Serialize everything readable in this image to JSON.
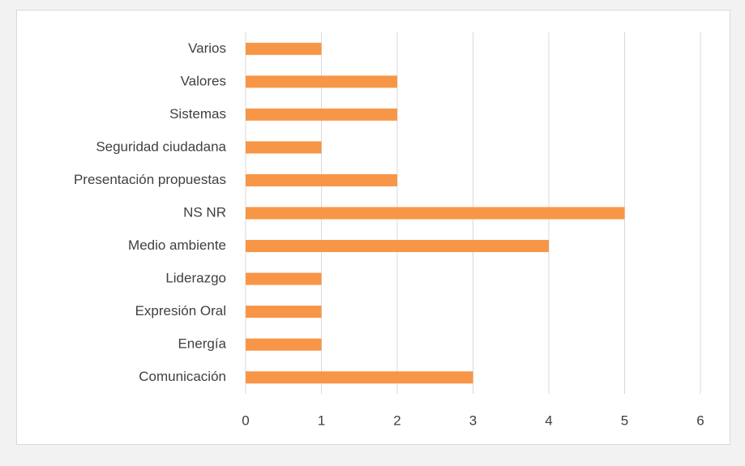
{
  "chart_data": {
    "type": "bar",
    "orientation": "horizontal",
    "categories": [
      "Varios",
      "Valores",
      "Sistemas",
      "Seguridad ciudadana",
      "Presentación propuestas",
      "NS NR",
      "Medio ambiente",
      "Liderazgo",
      "Expresión Oral",
      "Energía",
      "Comunicación"
    ],
    "values": [
      1,
      2,
      2,
      1,
      2,
      5,
      4,
      1,
      1,
      1,
      3
    ],
    "color": "#f79646",
    "xlim": [
      0,
      6
    ],
    "xticks": [
      0,
      1,
      2,
      3,
      4,
      5,
      6
    ],
    "grid": true
  }
}
